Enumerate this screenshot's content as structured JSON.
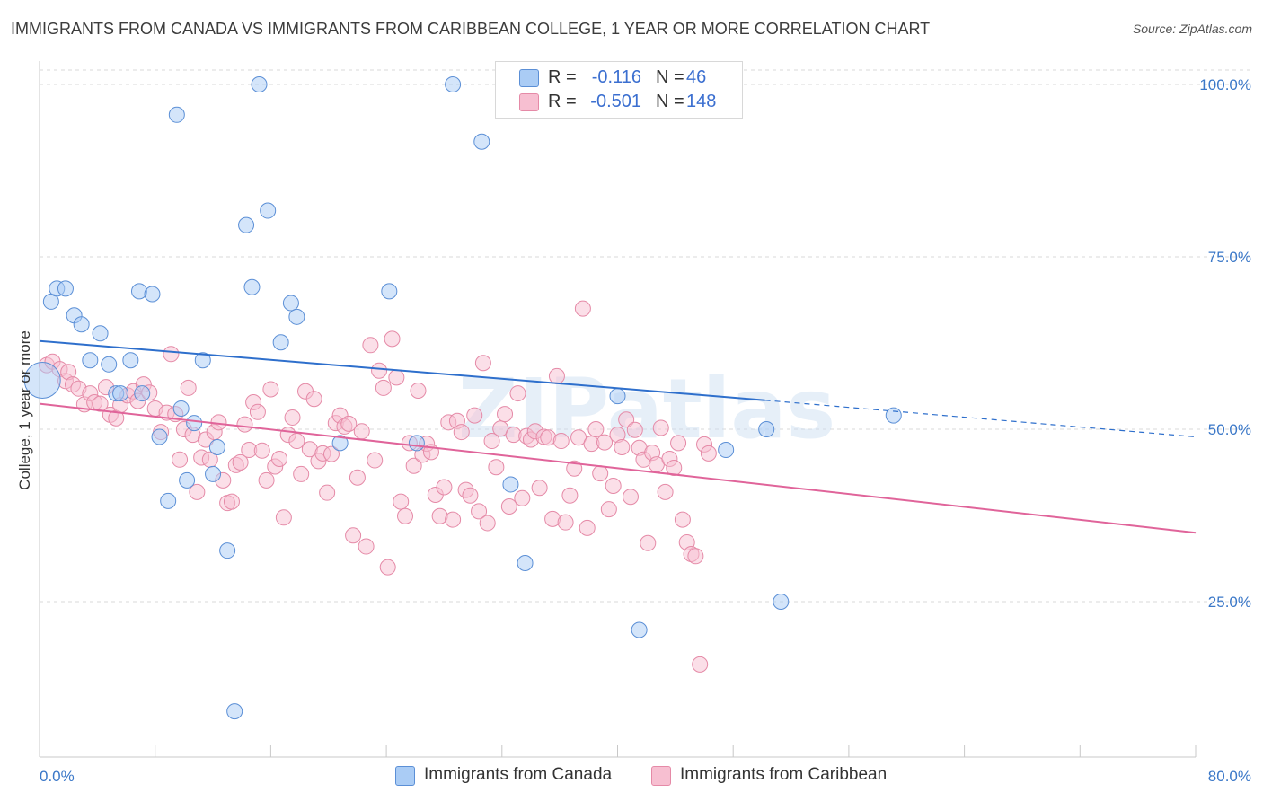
{
  "title": "IMMIGRANTS FROM CANADA VS IMMIGRANTS FROM CARIBBEAN COLLEGE, 1 YEAR OR MORE CORRELATION CHART",
  "source": "Source: ZipAtlas.com",
  "watermark": "ZIPatlas",
  "legend": {
    "rows": [
      {
        "r_label": "R =",
        "r_value": "-0.116",
        "n_label": "N =",
        "n_value": "46"
      },
      {
        "r_label": "R =",
        "r_value": "-0.501",
        "n_label": "N =",
        "n_value": "148"
      }
    ]
  },
  "bottom_legend": [
    "Immigrants from Canada",
    "Immigrants from Caribbean"
  ],
  "colors": {
    "canada_fill": "#aaccf5",
    "canada_stroke": "#5b8fd6",
    "canada_line": "#2e6fcc",
    "caribbean_fill": "#f7bfd1",
    "caribbean_stroke": "#e58aa7",
    "caribbean_line": "#e0649a",
    "tick_label": "#3b78c8",
    "grid": "#d9d9d9"
  },
  "chart_data": {
    "type": "scatter",
    "title": "IMMIGRANTS FROM CANADA VS IMMIGRANTS FROM CARIBBEAN COLLEGE, 1 YEAR OR MORE CORRELATION CHART",
    "xlabel": "",
    "ylabel": "College, 1 year or more",
    "xlim": [
      0,
      80
    ],
    "ylim": [
      3,
      103
    ],
    "x_tick_labels": [
      "0.0%",
      "80.0%"
    ],
    "y_ticks": [
      25,
      50,
      75,
      100
    ],
    "y_tick_labels": [
      "25.0%",
      "50.0%",
      "75.0%",
      "100.0%"
    ],
    "grid": true,
    "legend_position": "top-center",
    "series": [
      {
        "name": "Immigrants from Canada",
        "r": -0.116,
        "n": 46,
        "trend": {
          "x0": 0,
          "y0": 62.8,
          "x1": 50.2,
          "y1": 54.2,
          "dash_to_x": 80,
          "dash_to_y": 48.9
        },
        "points": [
          [
            0.2,
            57.1,
            "big"
          ],
          [
            0.8,
            68.5
          ],
          [
            1.2,
            70.4
          ],
          [
            1.8,
            70.4
          ],
          [
            2.4,
            66.5
          ],
          [
            2.9,
            65.2
          ],
          [
            3.5,
            60.0
          ],
          [
            4.2,
            63.9
          ],
          [
            4.8,
            59.4
          ],
          [
            5.3,
            55.2
          ],
          [
            5.6,
            55.2
          ],
          [
            6.3,
            60.0
          ],
          [
            6.9,
            70.0
          ],
          [
            7.1,
            55.2
          ],
          [
            7.8,
            69.6
          ],
          [
            8.3,
            48.9
          ],
          [
            8.9,
            39.6
          ],
          [
            9.5,
            95.6
          ],
          [
            9.8,
            53.0
          ],
          [
            10.2,
            42.6
          ],
          [
            10.7,
            50.9
          ],
          [
            11.3,
            60.0
          ],
          [
            12.0,
            43.5
          ],
          [
            12.3,
            47.4
          ],
          [
            13.0,
            32.4
          ],
          [
            13.5,
            9.1
          ],
          [
            14.3,
            79.6
          ],
          [
            14.7,
            70.6
          ],
          [
            15.2,
            100.0
          ],
          [
            15.8,
            81.7
          ],
          [
            16.7,
            62.6
          ],
          [
            17.4,
            68.3
          ],
          [
            17.8,
            66.3
          ],
          [
            20.8,
            48.0
          ],
          [
            24.2,
            70.0
          ],
          [
            26.1,
            48.0
          ],
          [
            28.6,
            100.0
          ],
          [
            30.6,
            91.7
          ],
          [
            32.6,
            42.0
          ],
          [
            33.6,
            30.6
          ],
          [
            40.0,
            54.8
          ],
          [
            41.5,
            20.9
          ],
          [
            47.5,
            47.0
          ],
          [
            50.3,
            50.0
          ],
          [
            51.3,
            25.0
          ],
          [
            59.1,
            52.0
          ]
        ]
      },
      {
        "name": "Immigrants from Caribbean",
        "r": -0.501,
        "n": 148,
        "trend": {
          "x0": 0,
          "y0": 53.7,
          "x1": 80,
          "y1": 35.0
        },
        "points": [
          [
            0.5,
            59.3
          ],
          [
            0.9,
            59.8
          ],
          [
            1.4,
            58.7
          ],
          [
            1.8,
            57.0
          ],
          [
            2.0,
            58.3
          ],
          [
            2.3,
            56.5
          ],
          [
            2.7,
            55.9
          ],
          [
            3.1,
            53.6
          ],
          [
            3.5,
            55.2
          ],
          [
            3.8,
            53.9
          ],
          [
            4.2,
            53.7
          ],
          [
            4.6,
            56.1
          ],
          [
            4.9,
            52.1
          ],
          [
            5.3,
            51.6
          ],
          [
            5.6,
            53.5
          ],
          [
            6.1,
            54.9
          ],
          [
            6.5,
            55.5
          ],
          [
            6.8,
            54.1
          ],
          [
            7.2,
            56.5
          ],
          [
            7.6,
            55.3
          ],
          [
            8.0,
            53.0
          ],
          [
            8.4,
            49.6
          ],
          [
            8.8,
            52.4
          ],
          [
            9.1,
            60.9
          ],
          [
            9.4,
            52.2
          ],
          [
            9.7,
            45.6
          ],
          [
            10.0,
            50.0
          ],
          [
            10.3,
            56.0
          ],
          [
            10.6,
            49.2
          ],
          [
            10.9,
            40.9
          ],
          [
            11.2,
            45.9
          ],
          [
            11.5,
            48.5
          ],
          [
            11.8,
            45.6
          ],
          [
            12.1,
            49.6
          ],
          [
            12.4,
            51.0
          ],
          [
            12.7,
            42.6
          ],
          [
            13.0,
            39.3
          ],
          [
            13.3,
            39.5
          ],
          [
            13.6,
            44.8
          ],
          [
            13.9,
            45.2
          ],
          [
            14.2,
            50.7
          ],
          [
            14.5,
            47.0
          ],
          [
            14.8,
            53.9
          ],
          [
            15.1,
            52.5
          ],
          [
            15.4,
            46.9
          ],
          [
            15.7,
            42.6
          ],
          [
            16.0,
            55.8
          ],
          [
            16.3,
            44.6
          ],
          [
            16.6,
            45.7
          ],
          [
            16.9,
            37.2
          ],
          [
            17.2,
            49.2
          ],
          [
            17.5,
            51.7
          ],
          [
            17.8,
            48.3
          ],
          [
            18.1,
            43.5
          ],
          [
            18.4,
            55.5
          ],
          [
            18.7,
            47.1
          ],
          [
            19.0,
            54.4
          ],
          [
            19.3,
            45.4
          ],
          [
            19.6,
            46.5
          ],
          [
            19.9,
            40.8
          ],
          [
            20.2,
            46.4
          ],
          [
            20.5,
            50.9
          ],
          [
            20.8,
            52.0
          ],
          [
            21.1,
            50.4
          ],
          [
            21.4,
            50.8
          ],
          [
            21.7,
            34.6
          ],
          [
            22.0,
            43.0
          ],
          [
            22.3,
            49.7
          ],
          [
            22.6,
            33.0
          ],
          [
            22.9,
            62.2
          ],
          [
            23.2,
            45.5
          ],
          [
            23.5,
            58.5
          ],
          [
            23.8,
            56.0
          ],
          [
            24.1,
            30.0
          ],
          [
            24.4,
            63.1
          ],
          [
            24.7,
            57.5
          ],
          [
            25.0,
            39.5
          ],
          [
            25.3,
            37.4
          ],
          [
            25.6,
            48.0
          ],
          [
            25.9,
            44.7
          ],
          [
            26.2,
            55.6
          ],
          [
            26.5,
            46.3
          ],
          [
            26.8,
            47.9
          ],
          [
            27.1,
            46.7
          ],
          [
            27.4,
            40.5
          ],
          [
            27.7,
            37.4
          ],
          [
            28.0,
            41.6
          ],
          [
            28.3,
            51.0
          ],
          [
            28.6,
            36.9
          ],
          [
            28.9,
            51.2
          ],
          [
            29.2,
            49.6
          ],
          [
            29.5,
            41.2
          ],
          [
            29.8,
            40.4
          ],
          [
            30.1,
            52.0
          ],
          [
            30.4,
            38.1
          ],
          [
            30.7,
            59.6
          ],
          [
            31.0,
            36.4
          ],
          [
            31.3,
            48.3
          ],
          [
            31.6,
            44.5
          ],
          [
            31.9,
            50.1
          ],
          [
            32.2,
            52.2
          ],
          [
            32.5,
            38.8
          ],
          [
            32.8,
            49.2
          ],
          [
            33.1,
            55.2
          ],
          [
            33.4,
            40.0
          ],
          [
            33.7,
            49.0
          ],
          [
            34.0,
            48.5
          ],
          [
            34.3,
            49.7
          ],
          [
            34.6,
            41.5
          ],
          [
            34.9,
            48.9
          ],
          [
            35.2,
            48.8
          ],
          [
            35.5,
            37.0
          ],
          [
            35.8,
            57.7
          ],
          [
            36.1,
            48.3
          ],
          [
            36.4,
            36.5
          ],
          [
            36.7,
            40.4
          ],
          [
            37.0,
            44.3
          ],
          [
            37.3,
            48.8
          ],
          [
            37.6,
            67.5
          ],
          [
            37.9,
            35.7
          ],
          [
            38.2,
            47.9
          ],
          [
            38.5,
            50.0
          ],
          [
            38.8,
            43.6
          ],
          [
            39.1,
            48.1
          ],
          [
            39.4,
            38.4
          ],
          [
            39.7,
            41.8
          ],
          [
            40.0,
            49.2
          ],
          [
            40.3,
            47.4
          ],
          [
            40.6,
            51.4
          ],
          [
            40.9,
            40.2
          ],
          [
            41.2,
            49.9
          ],
          [
            41.5,
            47.3
          ],
          [
            41.8,
            45.6
          ],
          [
            42.1,
            33.5
          ],
          [
            42.4,
            46.6
          ],
          [
            42.7,
            44.9
          ],
          [
            43.0,
            50.2
          ],
          [
            43.3,
            40.9
          ],
          [
            43.6,
            45.7
          ],
          [
            43.9,
            44.4
          ],
          [
            44.2,
            48.0
          ],
          [
            44.5,
            36.9
          ],
          [
            44.8,
            33.6
          ],
          [
            45.1,
            31.9
          ],
          [
            45.4,
            31.6
          ],
          [
            45.7,
            15.9
          ],
          [
            46.0,
            47.8
          ],
          [
            46.3,
            46.5
          ]
        ]
      }
    ]
  }
}
